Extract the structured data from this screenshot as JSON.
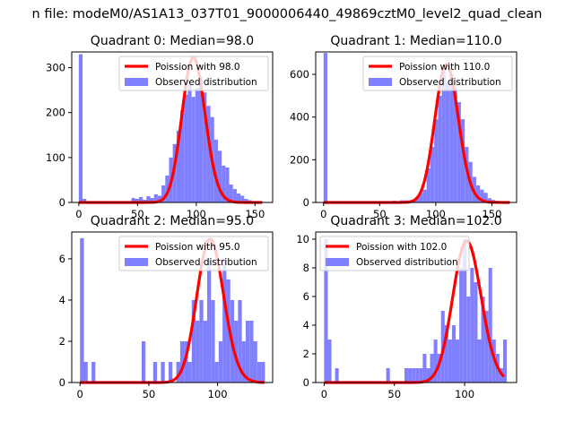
{
  "figure": {
    "suptitle": "n file: modeM0/AS1A13_037T01_9000006440_49869cztM0_level2_quad_clean"
  },
  "colors": {
    "bars": "#8080ff",
    "poisson_line": "#ff0000"
  },
  "chart_data": [
    {
      "type": "bar",
      "title": "Quadrant 0: Median=98.0",
      "xlim": [
        -6,
        165
      ],
      "ylim": [
        0,
        335
      ],
      "xticks": [
        0,
        50,
        100,
        150
      ],
      "yticks": [
        0,
        100,
        200,
        300
      ],
      "bin_width": 3.2,
      "bins_x": [
        0,
        3.2,
        16,
        25.6,
        44.8,
        48,
        51.2,
        54.4,
        57.6,
        60.8,
        64,
        67.2,
        70.4,
        73.6,
        76.8,
        80,
        83.2,
        86.4,
        89.6,
        92.8,
        96,
        99.2,
        102.4,
        105.6,
        108.8,
        112,
        115.2,
        118.4,
        121.6,
        124.8,
        128,
        131.2,
        134.4,
        137.6,
        140.8,
        144,
        147.2,
        150.4,
        153.6
      ],
      "counts": [
        330,
        8,
        3,
        2,
        10,
        8,
        12,
        6,
        14,
        10,
        18,
        15,
        38,
        60,
        100,
        130,
        160,
        205,
        240,
        265,
        235,
        255,
        280,
        245,
        215,
        190,
        140,
        115,
        82,
        78,
        40,
        30,
        20,
        15,
        8,
        5,
        3,
        2,
        2
      ],
      "poisson_mean": 98.0,
      "poisson_scale": 8000,
      "poisson_xrange": [
        0,
        156
      ],
      "legend": [
        "Poission with 98.0",
        "Observed distribution"
      ],
      "legend_position": "upper right"
    },
    {
      "type": "bar",
      "title": "Quadrant 1: Median=110.0",
      "xlim": [
        -7,
        172
      ],
      "ylim": [
        0,
        705
      ],
      "xticks": [
        0,
        50,
        100,
        150
      ],
      "yticks": [
        0,
        200,
        400,
        600
      ],
      "bin_width": 3.4,
      "bins_x": [
        0,
        20.4,
        47.6,
        54.4,
        61.2,
        68,
        71.4,
        74.8,
        78.2,
        81.6,
        85,
        88.4,
        91.8,
        95.2,
        98.6,
        102,
        105.4,
        108.8,
        112.2,
        115.6,
        119,
        122.4,
        125.8,
        129.2,
        132.6,
        136,
        139.4,
        142.8,
        146.2,
        149.6,
        153,
        156.4
      ],
      "counts": [
        700,
        2,
        3,
        5,
        8,
        10,
        10,
        10,
        12,
        25,
        45,
        60,
        160,
        260,
        390,
        500,
        630,
        560,
        600,
        540,
        470,
        390,
        260,
        190,
        120,
        80,
        60,
        45,
        20,
        12,
        8,
        5
      ],
      "poisson_mean": 110.0,
      "poisson_scale": 17000,
      "poisson_xrange": [
        0,
        166
      ],
      "legend": [
        "Poission with 110.0",
        "Observed distribution"
      ],
      "legend_position": "upper right"
    },
    {
      "type": "bar",
      "title": "Quadrant 2: Median=95.0",
      "xlim": [
        -6,
        140
      ],
      "ylim": [
        0,
        7.3
      ],
      "xticks": [
        0,
        50,
        100
      ],
      "yticks": [
        0,
        2,
        4,
        6
      ],
      "bin_width": 2.8,
      "bins_x": [
        0,
        2.8,
        8.4,
        44.8,
        53.2,
        58.8,
        64.4,
        70,
        72.8,
        75.6,
        78.4,
        81.2,
        84,
        86.8,
        89.6,
        92.4,
        95.2,
        98,
        100.8,
        103.6,
        106.4,
        109.2,
        112,
        114.8,
        117.6,
        120.4,
        123.2,
        126,
        128.8,
        131.6
      ],
      "counts": [
        7,
        1,
        1,
        2,
        1,
        1,
        1,
        1,
        2,
        2,
        1,
        4,
        3,
        4,
        3,
        6,
        4,
        1,
        2,
        6,
        5,
        4,
        3,
        4,
        2,
        3,
        3,
        2,
        1,
        1
      ],
      "poisson_mean": 95.0,
      "poisson_scale": 170,
      "poisson_xrange": [
        0,
        134
      ],
      "legend": [
        "Poission with 95.0",
        "Observed distribution"
      ],
      "legend_position": "upper right"
    },
    {
      "type": "bar",
      "title": "Quadrant 3: Median=102.0",
      "xlim": [
        -6,
        137
      ],
      "ylim": [
        0,
        10.5
      ],
      "xticks": [
        0,
        50,
        100
      ],
      "yticks": [
        0,
        2,
        4,
        6,
        8,
        10
      ],
      "bin_width": 2.6,
      "bins_x": [
        0,
        2.6,
        7.8,
        44.2,
        57.2,
        59.8,
        62.4,
        65,
        67.6,
        70.2,
        72.8,
        75.4,
        78,
        80.6,
        83.2,
        85.8,
        88.4,
        91,
        93.6,
        96.2,
        98.8,
        101.4,
        104,
        106.6,
        109.2,
        111.8,
        114.4,
        117,
        119.6,
        122.2,
        124.8,
        127.4
      ],
      "counts": [
        10,
        3,
        1,
        1,
        1,
        1,
        1,
        1,
        1,
        2,
        1,
        2,
        3,
        2,
        5,
        4,
        3,
        4,
        3,
        8,
        10,
        6,
        8,
        7,
        3,
        6,
        5,
        8,
        3,
        2,
        1,
        3
      ],
      "poisson_mean": 102.0,
      "poisson_scale": 250,
      "poisson_xrange": [
        0,
        128
      ],
      "legend": [
        "Poission with 102.0",
        "Observed distribution"
      ],
      "legend_position": "upper left"
    }
  ]
}
